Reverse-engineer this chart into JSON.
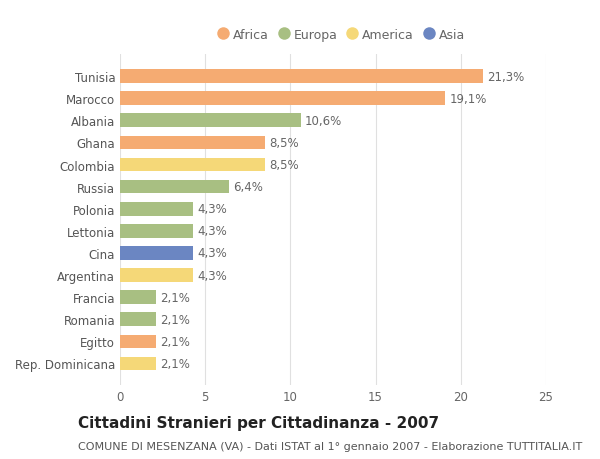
{
  "categories": [
    "Tunisia",
    "Marocco",
    "Albania",
    "Ghana",
    "Colombia",
    "Russia",
    "Polonia",
    "Lettonia",
    "Cina",
    "Argentina",
    "Francia",
    "Romania",
    "Egitto",
    "Rep. Dominicana"
  ],
  "values": [
    21.3,
    19.1,
    10.6,
    8.5,
    8.5,
    6.4,
    4.3,
    4.3,
    4.3,
    4.3,
    2.1,
    2.1,
    2.1,
    2.1
  ],
  "labels": [
    "21,3%",
    "19,1%",
    "10,6%",
    "8,5%",
    "8,5%",
    "6,4%",
    "4,3%",
    "4,3%",
    "4,3%",
    "4,3%",
    "2,1%",
    "2,1%",
    "2,1%",
    "2,1%"
  ],
  "continents": [
    "Africa",
    "Africa",
    "Europa",
    "Africa",
    "America",
    "Europa",
    "Europa",
    "Europa",
    "Asia",
    "America",
    "Europa",
    "Europa",
    "Africa",
    "America"
  ],
  "colors": {
    "Africa": "#F5AB72",
    "Europa": "#A8BF82",
    "America": "#F5D878",
    "Asia": "#6B86C2"
  },
  "legend_order": [
    "Africa",
    "Europa",
    "America",
    "Asia"
  ],
  "title": "Cittadini Stranieri per Cittadinanza - 2007",
  "subtitle": "COMUNE DI MESENZANA (VA) - Dati ISTAT al 1° gennaio 2007 - Elaborazione TUTTITALIA.IT",
  "xlim": [
    0,
    25
  ],
  "xticks": [
    0,
    5,
    10,
    15,
    20,
    25
  ],
  "background_color": "#ffffff",
  "grid_color": "#e0e0e0",
  "bar_height": 0.62,
  "title_fontsize": 11,
  "subtitle_fontsize": 8,
  "tick_fontsize": 8.5,
  "label_fontsize": 8.5,
  "legend_fontsize": 9
}
